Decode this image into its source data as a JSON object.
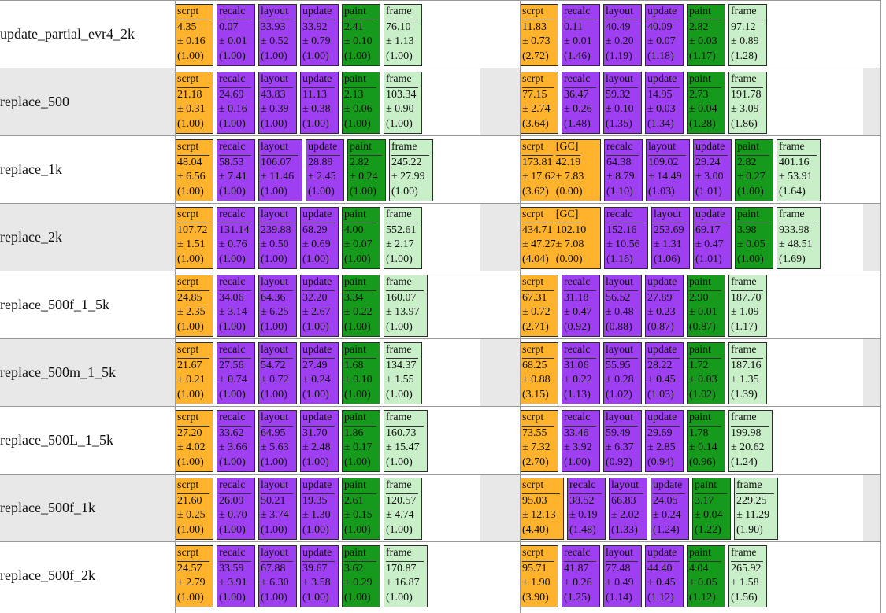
{
  "colors": {
    "script": "#ffb22b",
    "purple": "#9f3ff2",
    "paint": "#159a1c",
    "frame": "#c9efc8",
    "row_shade": "#e8e8e8"
  },
  "chart_data": {
    "type": "table",
    "title": "",
    "columns": [
      "scrpt",
      "[GC]",
      "recalc",
      "layout",
      "update",
      "paint",
      "frame"
    ],
    "rows": [
      {
        "name": "update_partial_evr4_2k",
        "left": [
          {
            "label": "scrpt",
            "value": "4.35",
            "err": "± 0.16",
            "ratio": "(1.00)"
          },
          {
            "label": "recalc",
            "value": "0.07",
            "err": "± 0.01",
            "ratio": "(1.00)"
          },
          {
            "label": "layout",
            "value": "33.93",
            "err": "± 0.52",
            "ratio": "(1.00)"
          },
          {
            "label": "update",
            "value": "33.92",
            "err": "± 0.79",
            "ratio": "(1.00)"
          },
          {
            "label": "paint",
            "value": "2.41",
            "err": "± 0.10",
            "ratio": "(1.00)"
          },
          {
            "label": "frame",
            "value": "76.10",
            "err": "± 1.13",
            "ratio": "(1.00)"
          }
        ],
        "right": [
          {
            "label": "scrpt",
            "value": "11.83",
            "err": "± 0.73",
            "ratio": "(2.72)"
          },
          {
            "label": "recalc",
            "value": "0.11",
            "err": "± 0.01",
            "ratio": "(1.46)"
          },
          {
            "label": "layout",
            "value": "40.49",
            "err": "± 0.20",
            "ratio": "(1.19)"
          },
          {
            "label": "update",
            "value": "40.09",
            "err": "± 0.07",
            "ratio": "(1.18)"
          },
          {
            "label": "paint",
            "value": "2.82",
            "err": "± 0.03",
            "ratio": "(1.17)"
          },
          {
            "label": "frame",
            "value": "97.12",
            "err": "± 0.89",
            "ratio": "(1.28)"
          }
        ]
      },
      {
        "name": "replace_500",
        "left": [
          {
            "label": "scrpt",
            "value": "21.18",
            "err": "± 0.31",
            "ratio": "(1.00)"
          },
          {
            "label": "recalc",
            "value": "24.69",
            "err": "± 0.16",
            "ratio": "(1.00)"
          },
          {
            "label": "layout",
            "value": "43.83",
            "err": "± 0.39",
            "ratio": "(1.00)"
          },
          {
            "label": "update",
            "value": "11.13",
            "err": "± 0.38",
            "ratio": "(1.00)"
          },
          {
            "label": "paint",
            "value": "2.13",
            "err": "± 0.06",
            "ratio": "(1.00)"
          },
          {
            "label": "frame",
            "value": "103.34",
            "err": "± 0.90",
            "ratio": "(1.00)"
          }
        ],
        "right": [
          {
            "label": "scrpt",
            "value": "77.15",
            "err": "± 2.74",
            "ratio": "(3.64)"
          },
          {
            "label": "recalc",
            "value": "36.47",
            "err": "± 0.26",
            "ratio": "(1.48)"
          },
          {
            "label": "layout",
            "value": "59.32",
            "err": "± 0.10",
            "ratio": "(1.35)"
          },
          {
            "label": "update",
            "value": "14.95",
            "err": "± 0.03",
            "ratio": "(1.34)"
          },
          {
            "label": "paint",
            "value": "2.73",
            "err": "± 0.04",
            "ratio": "(1.28)"
          },
          {
            "label": "frame",
            "value": "191.78",
            "err": "± 3.09",
            "ratio": "(1.86)"
          }
        ]
      },
      {
        "name": "replace_1k",
        "left": [
          {
            "label": "scrpt",
            "value": "48.04",
            "err": "± 6.56",
            "ratio": "(1.00)"
          },
          {
            "label": "recalc",
            "value": "58.53",
            "err": "± 7.41",
            "ratio": "(1.00)"
          },
          {
            "label": "layout",
            "value": "106.07",
            "err": "± 11.46",
            "ratio": "(1.00)"
          },
          {
            "label": "update",
            "value": "28.89",
            "err": "± 2.45",
            "ratio": "(1.00)"
          },
          {
            "label": "paint",
            "value": "2.82",
            "err": "± 0.24",
            "ratio": "(1.00)"
          },
          {
            "label": "frame",
            "value": "245.22",
            "err": "± 27.99",
            "ratio": "(1.00)"
          }
        ],
        "right": [
          {
            "label": "scrpt",
            "value": "173.81",
            "err": "± 17.62",
            "ratio": "(3.62)",
            "gc": {
              "label": "[GC]",
              "value": "42.19",
              "err": "± 7.83",
              "ratio": "(0.00)"
            }
          },
          {
            "label": "recalc",
            "value": "64.38",
            "err": "± 8.79",
            "ratio": "(1.10)"
          },
          {
            "label": "layout",
            "value": "109.02",
            "err": "± 14.49",
            "ratio": "(1.03)"
          },
          {
            "label": "update",
            "value": "29.24",
            "err": "± 3.00",
            "ratio": "(1.01)"
          },
          {
            "label": "paint",
            "value": "2.82",
            "err": "± 0.27",
            "ratio": "(1.00)"
          },
          {
            "label": "frame",
            "value": "401.16",
            "err": "± 53.91",
            "ratio": "(1.64)"
          }
        ]
      },
      {
        "name": "replace_2k",
        "left": [
          {
            "label": "scrpt",
            "value": "107.72",
            "err": "± 1.51",
            "ratio": "(1.00)"
          },
          {
            "label": "recalc",
            "value": "131.14",
            "err": "± 0.76",
            "ratio": "(1.00)"
          },
          {
            "label": "layout",
            "value": "239.88",
            "err": "± 0.50",
            "ratio": "(1.00)"
          },
          {
            "label": "update",
            "value": "68.29",
            "err": "± 0.69",
            "ratio": "(1.00)"
          },
          {
            "label": "paint",
            "value": "4.00",
            "err": "± 0.07",
            "ratio": "(1.00)"
          },
          {
            "label": "frame",
            "value": "552.61",
            "err": "± 2.17",
            "ratio": "(1.00)"
          }
        ],
        "right": [
          {
            "label": "scrpt",
            "value": "434.71",
            "err": "± 47.27",
            "ratio": "(4.04)",
            "gc": {
              "label": "[GC]",
              "value": "102.10",
              "err": "± 7.08",
              "ratio": "(0.00)"
            }
          },
          {
            "label": "recalc",
            "value": "152.16",
            "err": "± 10.56",
            "ratio": "(1.16)"
          },
          {
            "label": "layout",
            "value": "253.69",
            "err": "± 1.31",
            "ratio": "(1.06)"
          },
          {
            "label": "update",
            "value": "69.17",
            "err": "± 0.47",
            "ratio": "(1.01)"
          },
          {
            "label": "paint",
            "value": "3.98",
            "err": "± 0.05",
            "ratio": "(1.00)"
          },
          {
            "label": "frame",
            "value": "933.98",
            "err": "± 48.51",
            "ratio": "(1.69)"
          }
        ]
      },
      {
        "name": "replace_500f_1_5k",
        "left": [
          {
            "label": "scrpt",
            "value": "24.85",
            "err": "± 2.35",
            "ratio": "(1.00)"
          },
          {
            "label": "recalc",
            "value": "34.06",
            "err": "± 3.14",
            "ratio": "(1.00)"
          },
          {
            "label": "layout",
            "value": "64.36",
            "err": "± 6.25",
            "ratio": "(1.00)"
          },
          {
            "label": "update",
            "value": "32.20",
            "err": "± 2.67",
            "ratio": "(1.00)"
          },
          {
            "label": "paint",
            "value": "3.34",
            "err": "± 0.22",
            "ratio": "(1.00)"
          },
          {
            "label": "frame",
            "value": "160.07",
            "err": "± 13.97",
            "ratio": "(1.00)"
          }
        ],
        "right": [
          {
            "label": "scrpt",
            "value": "67.31",
            "err": "± 0.72",
            "ratio": "(2.71)"
          },
          {
            "label": "recalc",
            "value": "31.18",
            "err": "± 0.47",
            "ratio": "(0.92)"
          },
          {
            "label": "layout",
            "value": "56.52",
            "err": "± 0.48",
            "ratio": "(0.88)"
          },
          {
            "label": "update",
            "value": "27.89",
            "err": "± 0.23",
            "ratio": "(0.87)"
          },
          {
            "label": "paint",
            "value": "2.90",
            "err": "± 0.01",
            "ratio": "(0.87)"
          },
          {
            "label": "frame",
            "value": "187.70",
            "err": "± 1.09",
            "ratio": "(1.17)"
          }
        ]
      },
      {
        "name": "replace_500m_1_5k",
        "left": [
          {
            "label": "scrpt",
            "value": "21.67",
            "err": "± 0.21",
            "ratio": "(1.00)"
          },
          {
            "label": "recalc",
            "value": "27.56",
            "err": "± 0.74",
            "ratio": "(1.00)"
          },
          {
            "label": "layout",
            "value": "54.72",
            "err": "± 0.72",
            "ratio": "(1.00)"
          },
          {
            "label": "update",
            "value": "27.49",
            "err": "± 0.24",
            "ratio": "(1.00)"
          },
          {
            "label": "paint",
            "value": "1.68",
            "err": "± 0.10",
            "ratio": "(1.00)"
          },
          {
            "label": "frame",
            "value": "134.37",
            "err": "± 1.55",
            "ratio": "(1.00)"
          }
        ],
        "right": [
          {
            "label": "scrpt",
            "value": "68.25",
            "err": "± 0.88",
            "ratio": "(3.15)"
          },
          {
            "label": "recalc",
            "value": "31.06",
            "err": "± 0.22",
            "ratio": "(1.13)"
          },
          {
            "label": "layout",
            "value": "55.95",
            "err": "± 0.28",
            "ratio": "(1.02)"
          },
          {
            "label": "update",
            "value": "28.22",
            "err": "± 0.45",
            "ratio": "(1.03)"
          },
          {
            "label": "paint",
            "value": "1.72",
            "err": "± 0.03",
            "ratio": "(1.02)"
          },
          {
            "label": "frame",
            "value": "187.16",
            "err": "± 1.35",
            "ratio": "(1.39)"
          }
        ]
      },
      {
        "name": "replace_500L_1_5k",
        "left": [
          {
            "label": "scrpt",
            "value": "27.20",
            "err": "± 4.02",
            "ratio": "(1.00)"
          },
          {
            "label": "recalc",
            "value": "33.62",
            "err": "± 3.66",
            "ratio": "(1.00)"
          },
          {
            "label": "layout",
            "value": "64.95",
            "err": "± 5.63",
            "ratio": "(1.00)"
          },
          {
            "label": "update",
            "value": "31.70",
            "err": "± 2.48",
            "ratio": "(1.00)"
          },
          {
            "label": "paint",
            "value": "1.86",
            "err": "± 0.17",
            "ratio": "(1.00)"
          },
          {
            "label": "frame",
            "value": "160.73",
            "err": "± 15.47",
            "ratio": "(1.00)"
          }
        ],
        "right": [
          {
            "label": "scrpt",
            "value": "73.55",
            "err": "± 7.32",
            "ratio": "(2.70)"
          },
          {
            "label": "recalc",
            "value": "33.46",
            "err": "± 3.92",
            "ratio": "(1.00)"
          },
          {
            "label": "layout",
            "value": "59.49",
            "err": "± 6.37",
            "ratio": "(0.92)"
          },
          {
            "label": "update",
            "value": "29.69",
            "err": "± 2.85",
            "ratio": "(0.94)"
          },
          {
            "label": "paint",
            "value": "1.78",
            "err": "± 0.14",
            "ratio": "(0.96)"
          },
          {
            "label": "frame",
            "value": "199.98",
            "err": "± 20.62",
            "ratio": "(1.24)"
          }
        ]
      },
      {
        "name": "replace_500f_1k",
        "left": [
          {
            "label": "scrpt",
            "value": "21.60",
            "err": "± 0.25",
            "ratio": "(1.00)"
          },
          {
            "label": "recalc",
            "value": "26.09",
            "err": "± 0.70",
            "ratio": "(1.00)"
          },
          {
            "label": "layout",
            "value": "50.21",
            "err": "± 3.74",
            "ratio": "(1.00)"
          },
          {
            "label": "update",
            "value": "19.35",
            "err": "± 1.30",
            "ratio": "(1.00)"
          },
          {
            "label": "paint",
            "value": "2.61",
            "err": "± 0.15",
            "ratio": "(1.00)"
          },
          {
            "label": "frame",
            "value": "120.57",
            "err": "± 4.74",
            "ratio": "(1.00)"
          }
        ],
        "right": [
          {
            "label": "scrpt",
            "value": "95.03",
            "err": "± 12.13",
            "ratio": "(4.40)"
          },
          {
            "label": "recalc",
            "value": "38.52",
            "err": "± 0.19",
            "ratio": "(1.48)"
          },
          {
            "label": "layout",
            "value": "66.83",
            "err": "± 2.02",
            "ratio": "(1.33)"
          },
          {
            "label": "update",
            "value": "24.05",
            "err": "± 0.24",
            "ratio": "(1.24)"
          },
          {
            "label": "paint",
            "value": "3.17",
            "err": "± 0.04",
            "ratio": "(1.22)"
          },
          {
            "label": "frame",
            "value": "229.25",
            "err": "± 11.29",
            "ratio": "(1.90)"
          }
        ]
      },
      {
        "name": "replace_500f_2k",
        "left": [
          {
            "label": "scrpt",
            "value": "24.57",
            "err": "± 2.79",
            "ratio": "(1.00)"
          },
          {
            "label": "recalc",
            "value": "33.59",
            "err": "± 3.91",
            "ratio": "(1.00)"
          },
          {
            "label": "layout",
            "value": "67.88",
            "err": "± 6.30",
            "ratio": "(1.00)"
          },
          {
            "label": "update",
            "value": "39.67",
            "err": "± 3.58",
            "ratio": "(1.00)"
          },
          {
            "label": "paint",
            "value": "3.62",
            "err": "± 0.29",
            "ratio": "(1.00)"
          },
          {
            "label": "frame",
            "value": "170.87",
            "err": "± 16.87",
            "ratio": "(1.00)"
          }
        ],
        "right": [
          {
            "label": "scrpt",
            "value": "95.71",
            "err": "± 1.90",
            "ratio": "(3.90)"
          },
          {
            "label": "recalc",
            "value": "41.87",
            "err": "± 0.26",
            "ratio": "(1.25)"
          },
          {
            "label": "layout",
            "value": "77.48",
            "err": "± 0.49",
            "ratio": "(1.14)"
          },
          {
            "label": "update",
            "value": "44.40",
            "err": "± 0.45",
            "ratio": "(1.12)"
          },
          {
            "label": "paint",
            "value": "4.04",
            "err": "± 0.05",
            "ratio": "(1.12)"
          },
          {
            "label": "frame",
            "value": "265.92",
            "err": "± 1.58",
            "ratio": "(1.56)"
          }
        ]
      }
    ]
  }
}
